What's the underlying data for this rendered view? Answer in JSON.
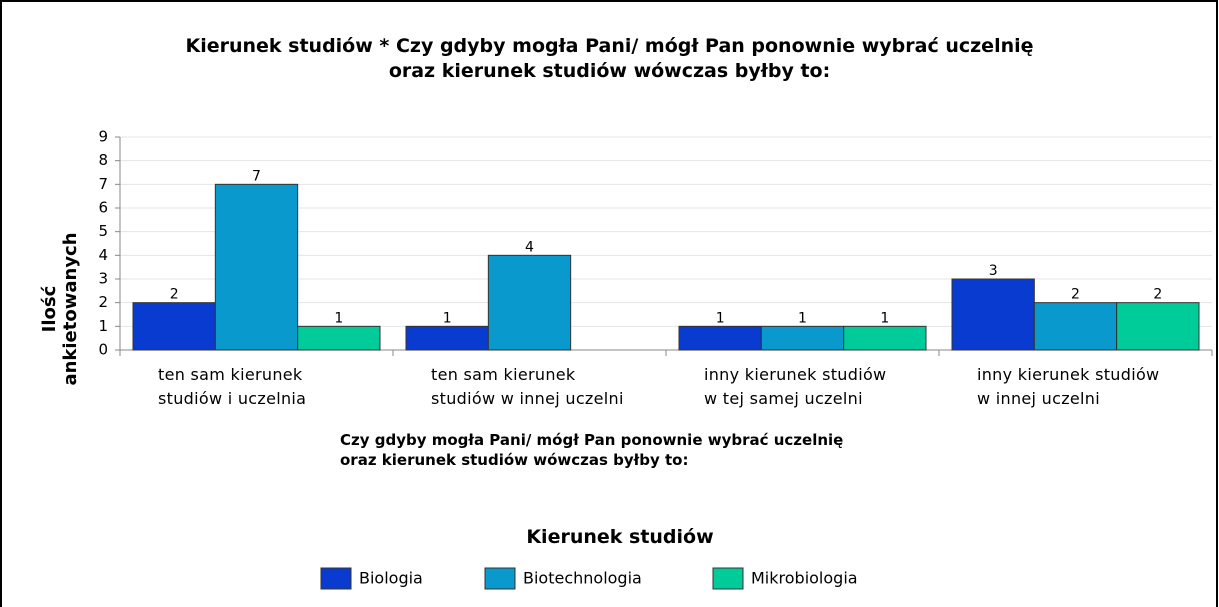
{
  "chart_data": {
    "type": "bar",
    "title": "Kierunek studiów * Czy gdyby mogła Pani/ mógł Pan ponownie wybrać uczelnię\noraz kierunek studiów wówczas byłby to:",
    "x_label": "Czy gdyby mogła Pani/ mógł Pan ponownie wybrać uczelnię\noraz kierunek studiów wówczas byłby to:",
    "y_label": "Ilość ankietowanych",
    "legend_title": "Kierunek studiów",
    "categories": [
      "ten sam kierunek\nstudiów i uczelnia",
      "ten sam kierunek\nstudiów w innej uczelni",
      "inny kierunek studiów\nw tej samej uczelni",
      "inny kierunek studiów\nw innej uczelni"
    ],
    "series": [
      {
        "name": "Biologia",
        "color": "#0a3bd0",
        "values": [
          2,
          1,
          1,
          3
        ]
      },
      {
        "name": "Biotechnologia",
        "color": "#0a99cc",
        "values": [
          7,
          4,
          1,
          2
        ]
      },
      {
        "name": "Mikrobiologia",
        "color": "#00cc99",
        "values": [
          1,
          null,
          1,
          2
        ]
      }
    ],
    "ylim": [
      0,
      9
    ],
    "yticks": [
      0,
      1,
      2,
      3,
      4,
      5,
      6,
      7,
      8,
      9
    ],
    "grid": true
  }
}
